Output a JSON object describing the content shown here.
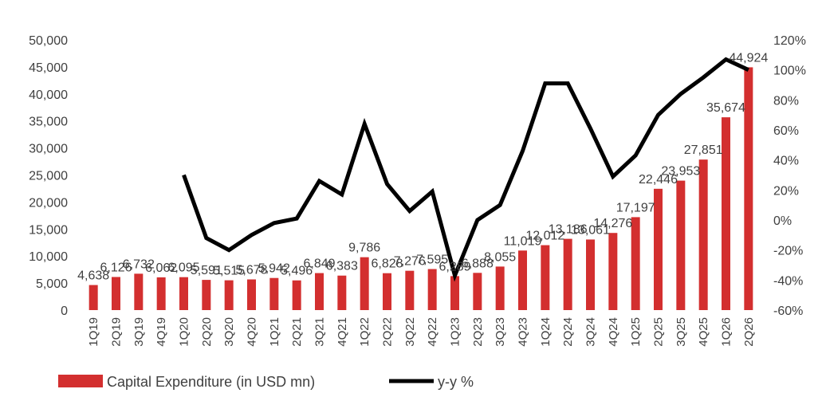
{
  "chart_data": {
    "type": "bar",
    "title": "",
    "xlabel": "",
    "ylabel": "",
    "categories": [
      "1Q19",
      "2Q19",
      "3Q19",
      "4Q19",
      "1Q20",
      "2Q20",
      "3Q20",
      "4Q20",
      "1Q21",
      "2Q21",
      "3Q21",
      "4Q21",
      "1Q22",
      "2Q22",
      "3Q22",
      "4Q22",
      "1Q23",
      "2Q23",
      "3Q23",
      "4Q23",
      "1Q24",
      "2Q24",
      "3Q24",
      "4Q24",
      "1Q25",
      "2Q25",
      "3Q25",
      "4Q25",
      "1Q26",
      "2Q26"
    ],
    "series": [
      {
        "name": "Capital Expenditure (in USD mn)",
        "type": "bar",
        "axis": "left",
        "color": "#d32f2f",
        "values": [
          4638,
          6126,
          6732,
          6062,
          6095,
          5591,
          5515,
          5678,
          5942,
          5496,
          6849,
          6383,
          9786,
          6828,
          7276,
          7595,
          6289,
          6888,
          8055,
          11019,
          12012,
          13186,
          13061,
          14276,
          17197,
          22446,
          23953,
          27851,
          35674,
          44924
        ],
        "labels": [
          "4,638",
          "6,126",
          "6,732",
          "6,062",
          "6,095",
          "5,591",
          "5,515",
          "5,678",
          "5,942",
          "5,496",
          "6,849",
          "6,383",
          "9,786",
          "6,828",
          "7,276",
          "7,595",
          "6,289",
          "6,888",
          "8,055",
          "11,019",
          "12,012",
          "13,186",
          "13,061",
          "14,276",
          "17,197",
          "22,446",
          "23,953",
          "27,851",
          "35,674",
          "44,924"
        ]
      },
      {
        "name": "y-y %",
        "type": "line",
        "axis": "right",
        "color": "#000000",
        "values": [
          null,
          null,
          null,
          null,
          30,
          -12,
          -20,
          -10,
          -2,
          1,
          26,
          17,
          64,
          24,
          6,
          19,
          -37,
          0,
          10,
          46,
          91,
          91,
          61,
          29,
          43,
          70,
          84,
          95,
          107,
          100
        ]
      }
    ],
    "y_left": {
      "min": 0,
      "max": 50000,
      "step": 5000,
      "ticks": [
        "0",
        "5,000",
        "10,000",
        "15,000",
        "20,000",
        "25,000",
        "30,000",
        "35,000",
        "40,000",
        "45,000",
        "50,000"
      ]
    },
    "y_right": {
      "min": -60,
      "max": 120,
      "step": 20,
      "ticks": [
        "-60%",
        "-40%",
        "-20%",
        "0%",
        "20%",
        "40%",
        "60%",
        "80%",
        "100%",
        "120%"
      ]
    },
    "grid": false,
    "legend": "bottom"
  },
  "legend": {
    "bar_label": "Capital Expenditure (in USD mn)",
    "line_label": "y-y %"
  }
}
